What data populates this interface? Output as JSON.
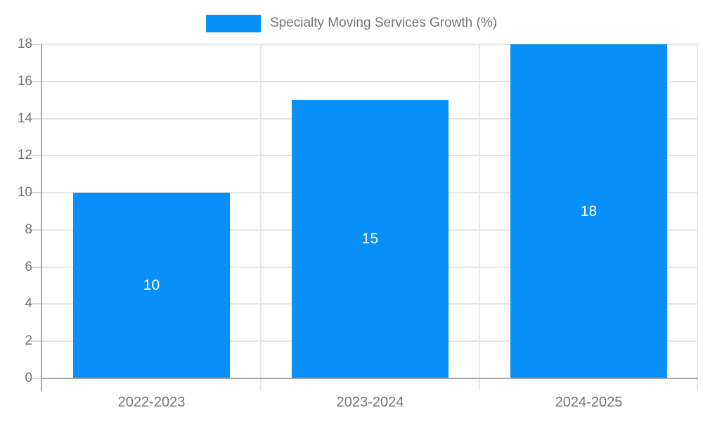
{
  "legend": {
    "label": "Specialty Moving Services Growth (%)"
  },
  "chart_data": {
    "type": "bar",
    "title": "Specialty Moving Services Growth (%)",
    "categories": [
      "2022-2023",
      "2023-2024",
      "2024-2025"
    ],
    "values": [
      10,
      15,
      18
    ],
    "bar_labels": [
      "10",
      "15",
      "18"
    ],
    "series": [
      {
        "name": "Specialty Moving Services Growth (%)",
        "values": [
          10,
          15,
          18
        ]
      }
    ],
    "xlabel": "",
    "ylabel": "",
    "ylim": [
      0,
      18
    ],
    "yticks": [
      0,
      2,
      4,
      6,
      8,
      10,
      12,
      14,
      16,
      18
    ],
    "grid": true,
    "legend_position": "top-center",
    "bar_color": "#0890f8",
    "bar_label_color": "#ffffff",
    "axis_text_color": "#757575",
    "gridline_color": "#e6e6e6",
    "axis_line_color": "#a6a6a6"
  }
}
